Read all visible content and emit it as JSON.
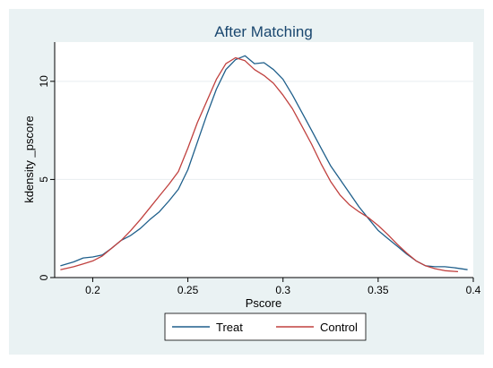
{
  "chart_data": {
    "type": "line",
    "title": "After Matching",
    "xlabel": "Pscore",
    "ylabel": "kdensity _pscore",
    "xlim": [
      0.18,
      0.4
    ],
    "ylim": [
      0,
      12
    ],
    "x_ticks": [
      0.2,
      0.25,
      0.3,
      0.35,
      0.4
    ],
    "x_tick_labels": [
      "0.2",
      "0.25",
      "0.3",
      "0.35",
      "0.4"
    ],
    "y_ticks": [
      0,
      5,
      10
    ],
    "y_tick_labels": [
      "0",
      "5",
      "10"
    ],
    "grid": "horizontal",
    "legend_position": "bottom",
    "series": [
      {
        "name": "Treat",
        "color": "#1f5f8b",
        "x": [
          0.183,
          0.19,
          0.195,
          0.2,
          0.205,
          0.21,
          0.215,
          0.22,
          0.225,
          0.23,
          0.235,
          0.24,
          0.245,
          0.25,
          0.255,
          0.26,
          0.265,
          0.27,
          0.275,
          0.28,
          0.285,
          0.29,
          0.295,
          0.3,
          0.305,
          0.31,
          0.315,
          0.32,
          0.325,
          0.33,
          0.335,
          0.34,
          0.345,
          0.35,
          0.355,
          0.36,
          0.365,
          0.37,
          0.375,
          0.38,
          0.385,
          0.39,
          0.397
        ],
        "y": [
          0.6,
          0.8,
          1.0,
          1.05,
          1.15,
          1.5,
          1.9,
          2.15,
          2.5,
          2.95,
          3.35,
          3.9,
          4.5,
          5.5,
          6.9,
          8.3,
          9.6,
          10.6,
          11.1,
          11.3,
          10.9,
          10.95,
          10.6,
          10.1,
          9.3,
          8.4,
          7.5,
          6.6,
          5.7,
          5.0,
          4.3,
          3.6,
          3.0,
          2.4,
          2.0,
          1.6,
          1.2,
          0.85,
          0.6,
          0.55,
          0.55,
          0.5,
          0.4
        ]
      },
      {
        "name": "Control",
        "color": "#c0403e",
        "x": [
          0.183,
          0.19,
          0.195,
          0.2,
          0.205,
          0.21,
          0.215,
          0.22,
          0.225,
          0.23,
          0.235,
          0.24,
          0.245,
          0.25,
          0.255,
          0.26,
          0.265,
          0.27,
          0.275,
          0.28,
          0.285,
          0.29,
          0.295,
          0.3,
          0.305,
          0.31,
          0.315,
          0.32,
          0.325,
          0.33,
          0.335,
          0.34,
          0.345,
          0.35,
          0.355,
          0.36,
          0.365,
          0.37,
          0.375,
          0.38,
          0.385,
          0.392
        ],
        "y": [
          0.4,
          0.55,
          0.7,
          0.85,
          1.1,
          1.5,
          1.9,
          2.4,
          2.95,
          3.55,
          4.15,
          4.75,
          5.4,
          6.6,
          7.9,
          9.0,
          10.1,
          10.9,
          11.2,
          11.05,
          10.6,
          10.3,
          9.9,
          9.3,
          8.6,
          7.7,
          6.8,
          5.8,
          4.9,
          4.2,
          3.7,
          3.35,
          3.05,
          2.65,
          2.2,
          1.7,
          1.25,
          0.85,
          0.6,
          0.45,
          0.35,
          0.3
        ]
      }
    ]
  },
  "legend": {
    "items": [
      {
        "label": "Treat",
        "color": "#1f5f8b"
      },
      {
        "label": "Control",
        "color": "#c0403e"
      }
    ]
  }
}
